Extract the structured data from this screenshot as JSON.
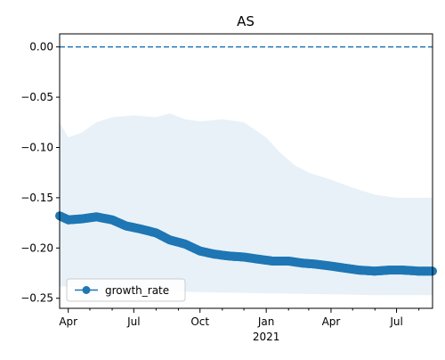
{
  "chart_data": {
    "type": "line",
    "title": "AS",
    "xlabel": "",
    "ylabel": "",
    "x_range": [
      "2020-03-20",
      "2021-08-20"
    ],
    "ylim": [
      -0.26,
      0.013
    ],
    "yticks": [
      0.0,
      -0.05,
      -0.1,
      -0.15,
      -0.2,
      -0.25
    ],
    "ytick_labels": [
      "0.00",
      "−0.05",
      "−0.10",
      "−0.15",
      "−0.20",
      "−0.25"
    ],
    "xticks": [
      {
        "date": "2020-04-01",
        "label": "Apr",
        "sublabel": ""
      },
      {
        "date": "2020-07-01",
        "label": "Jul",
        "sublabel": ""
      },
      {
        "date": "2020-10-01",
        "label": "Oct",
        "sublabel": ""
      },
      {
        "date": "2021-01-01",
        "label": "Jan",
        "sublabel": "2021"
      },
      {
        "date": "2021-04-01",
        "label": "Apr",
        "sublabel": ""
      },
      {
        "date": "2021-07-01",
        "label": "Jul",
        "sublabel": ""
      }
    ],
    "minor_xticks": [
      "2020-05-01",
      "2020-06-01",
      "2020-08-01",
      "2020-09-01",
      "2020-11-01",
      "2020-12-01",
      "2021-02-01",
      "2021-03-01",
      "2021-05-01",
      "2021-06-01",
      "2021-08-01"
    ],
    "reference_line": {
      "y": 0.0,
      "style": "dashed"
    },
    "series": [
      {
        "name": "growth_rate",
        "color": "#1f77b4",
        "marker": "circle",
        "points": [
          [
            "2020-03-20",
            -0.168
          ],
          [
            "2020-04-01",
            -0.172
          ],
          [
            "2020-04-20",
            -0.171
          ],
          [
            "2020-05-10",
            -0.169
          ],
          [
            "2020-06-01",
            -0.172
          ],
          [
            "2020-06-20",
            -0.178
          ],
          [
            "2020-07-10",
            -0.181
          ],
          [
            "2020-08-01",
            -0.185
          ],
          [
            "2020-08-20",
            -0.192
          ],
          [
            "2020-09-10",
            -0.196
          ],
          [
            "2020-10-01",
            -0.203
          ],
          [
            "2020-10-20",
            -0.206
          ],
          [
            "2020-11-10",
            -0.208
          ],
          [
            "2020-12-01",
            -0.209
          ],
          [
            "2020-12-20",
            -0.211
          ],
          [
            "2021-01-10",
            -0.213
          ],
          [
            "2021-02-01",
            -0.213
          ],
          [
            "2021-02-20",
            -0.215
          ],
          [
            "2021-03-10",
            -0.216
          ],
          [
            "2021-04-01",
            -0.218
          ],
          [
            "2021-04-20",
            -0.22
          ],
          [
            "2021-05-10",
            -0.222
          ],
          [
            "2021-06-01",
            -0.223
          ],
          [
            "2021-06-20",
            -0.222
          ],
          [
            "2021-07-10",
            -0.222
          ],
          [
            "2021-08-01",
            -0.223
          ],
          [
            "2021-08-20",
            -0.223
          ]
        ]
      }
    ],
    "band": {
      "color": "#1f77b4",
      "opacity": 0.1,
      "upper": [
        [
          "2020-03-20",
          -0.075
        ],
        [
          "2020-04-01",
          -0.09
        ],
        [
          "2020-04-20",
          -0.085
        ],
        [
          "2020-05-10",
          -0.075
        ],
        [
          "2020-06-01",
          -0.07
        ],
        [
          "2020-07-01",
          -0.068
        ],
        [
          "2020-08-01",
          -0.07
        ],
        [
          "2020-08-20",
          -0.066
        ],
        [
          "2020-09-10",
          -0.072
        ],
        [
          "2020-10-01",
          -0.074
        ],
        [
          "2020-11-01",
          -0.072
        ],
        [
          "2020-12-01",
          -0.075
        ],
        [
          "2021-01-01",
          -0.09
        ],
        [
          "2021-01-20",
          -0.105
        ],
        [
          "2021-02-10",
          -0.118
        ],
        [
          "2021-03-01",
          -0.125
        ],
        [
          "2021-04-01",
          -0.132
        ],
        [
          "2021-05-01",
          -0.14
        ],
        [
          "2021-06-01",
          -0.147
        ],
        [
          "2021-07-01",
          -0.15
        ],
        [
          "2021-08-20",
          -0.15
        ]
      ],
      "lower": [
        [
          "2020-03-20",
          -0.238
        ],
        [
          "2020-05-01",
          -0.24
        ],
        [
          "2020-07-01",
          -0.242
        ],
        [
          "2020-10-01",
          -0.244
        ],
        [
          "2021-01-01",
          -0.245
        ],
        [
          "2021-04-01",
          -0.246
        ],
        [
          "2021-06-01",
          -0.247
        ],
        [
          "2021-08-20",
          -0.247
        ]
      ]
    },
    "legend": {
      "position": "lower-left",
      "entries": [
        "growth_rate"
      ]
    },
    "grid": false
  }
}
